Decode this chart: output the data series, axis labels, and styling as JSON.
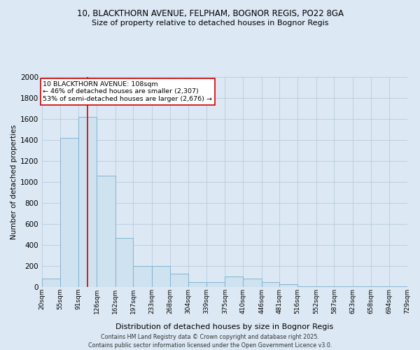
{
  "title1": "10, BLACKTHORN AVENUE, FELPHAM, BOGNOR REGIS, PO22 8GA",
  "title2": "Size of property relative to detached houses in Bognor Regis",
  "xlabel": "Distribution of detached houses by size in Bognor Regis",
  "ylabel": "Number of detached properties",
  "bin_edges": [
    20,
    55,
    91,
    126,
    162,
    197,
    233,
    268,
    304,
    339,
    375,
    410,
    446,
    481,
    516,
    552,
    587,
    623,
    658,
    694,
    729
  ],
  "bar_heights": [
    80,
    1420,
    1620,
    1060,
    470,
    200,
    200,
    130,
    50,
    50,
    100,
    80,
    50,
    25,
    10,
    10,
    5,
    5,
    5,
    5
  ],
  "bar_fill_color": "#cfe2f0",
  "bar_edge_color": "#7aaece",
  "grid_color": "#b8ccde",
  "background_color": "#dce8f4",
  "vline_x": 108,
  "vline_color": "#cc0000",
  "annotation_text": "10 BLACKTHORN AVENUE: 108sqm\n← 46% of detached houses are smaller (2,307)\n53% of semi-detached houses are larger (2,676) →",
  "annotation_box_color": "#ffffff",
  "annotation_box_edge": "#cc0000",
  "footer1": "Contains HM Land Registry data © Crown copyright and database right 2025.",
  "footer2": "Contains public sector information licensed under the Open Government Licence v3.0.",
  "ylim": [
    0,
    2000
  ],
  "yticks": [
    0,
    200,
    400,
    600,
    800,
    1000,
    1200,
    1400,
    1600,
    1800,
    2000
  ]
}
